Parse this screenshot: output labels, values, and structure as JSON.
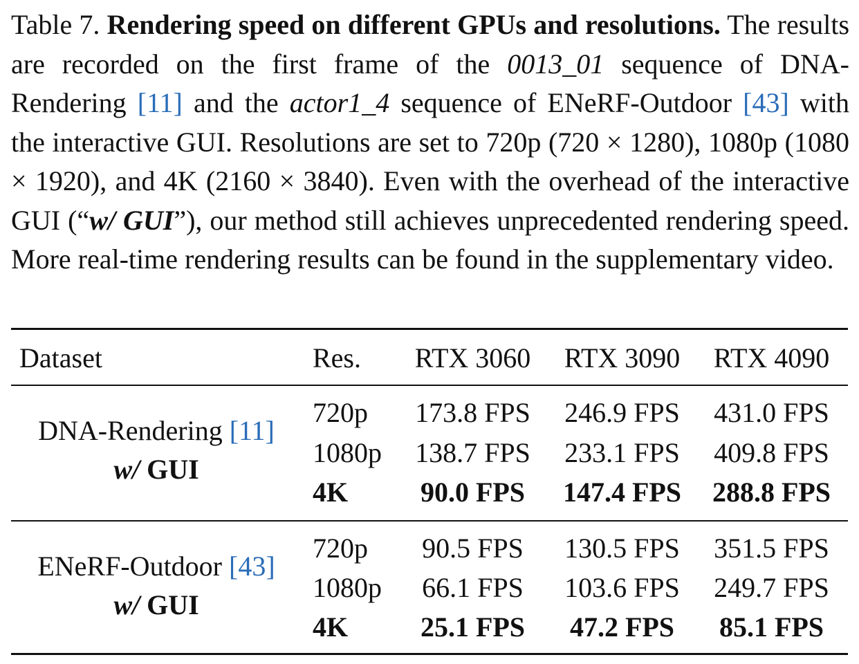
{
  "caption": {
    "label": "Table 7.",
    "title": "Rendering speed on different GPUs and resolutions.",
    "text_1": "The results are recorded on the first frame of the",
    "seq_1": "0013_01",
    "text_2": "sequence of DNA-Rendering",
    "cite_1": "[11]",
    "text_3": "and the",
    "seq_2": "actor1_4",
    "text_4": "sequence of ENeRF-Outdoor",
    "cite_2": "[43]",
    "text_5": "with the interactive GUI. Resolutions are set to 720p (720 × 1280), 1080p (1080 × 1920), and 4K (2160 × 3840). Even with the overhead of the interactive GUI (“",
    "gui_term": "w/ GUI",
    "text_6": "”), our method still achieves unprecedented rendering speed. More real-time rendering results can be found in the supplementary video."
  },
  "table": {
    "headers": {
      "dataset": "Dataset",
      "res": "Res.",
      "gpu_1": "RTX 3060",
      "gpu_2": "RTX 3090",
      "gpu_3": "RTX 4090"
    },
    "groups": [
      {
        "dataset": "DNA-Rendering",
        "cite": "[11]",
        "modifier_italic": "w/",
        "modifier_bold": "GUI",
        "rows": [
          {
            "res": "720p",
            "v1": "173.8 FPS",
            "v2": "246.9 FPS",
            "v3": "431.0 FPS",
            "bold": false
          },
          {
            "res": "1080p",
            "v1": "138.7 FPS",
            "v2": "233.1 FPS",
            "v3": "409.8 FPS",
            "bold": false
          },
          {
            "res": "4K",
            "v1": "90.0 FPS",
            "v2": "147.4 FPS",
            "v3": "288.8 FPS",
            "bold": true
          }
        ]
      },
      {
        "dataset": "ENeRF-Outdoor",
        "cite": "[43]",
        "modifier_italic": "w/",
        "modifier_bold": "GUI",
        "rows": [
          {
            "res": "720p",
            "v1": "90.5 FPS",
            "v2": "130.5 FPS",
            "v3": "351.5 FPS",
            "bold": false
          },
          {
            "res": "1080p",
            "v1": "66.1 FPS",
            "v2": "103.6 FPS",
            "v3": "249.7 FPS",
            "bold": false
          },
          {
            "res": "4K",
            "v1": "25.1 FPS",
            "v2": "47.2 FPS",
            "v3": "85.1 FPS",
            "bold": true
          }
        ]
      }
    ]
  },
  "colors": {
    "citation": "#2a6cb8",
    "text": "#111111"
  }
}
